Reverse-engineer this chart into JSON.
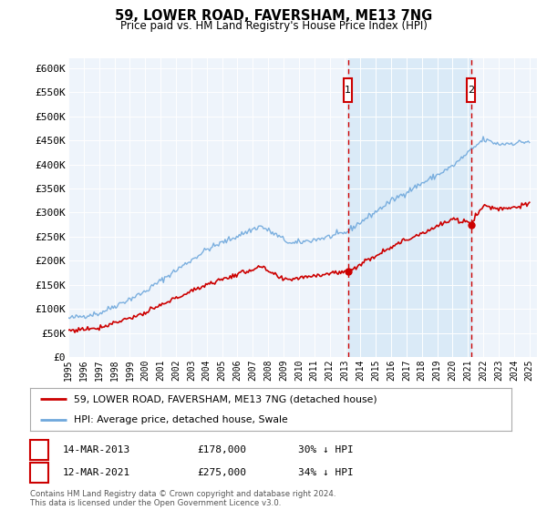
{
  "title": "59, LOWER ROAD, FAVERSHAM, ME13 7NG",
  "subtitle": "Price paid vs. HM Land Registry's House Price Index (HPI)",
  "ylabel_ticks": [
    "£0",
    "£50K",
    "£100K",
    "£150K",
    "£200K",
    "£250K",
    "£300K",
    "£350K",
    "£400K",
    "£450K",
    "£500K",
    "£550K",
    "£600K"
  ],
  "ytick_values": [
    0,
    50000,
    100000,
    150000,
    200000,
    250000,
    300000,
    350000,
    400000,
    450000,
    500000,
    550000,
    600000
  ],
  "ylim": [
    0,
    620000
  ],
  "xlim_start": 1995.0,
  "xlim_end": 2025.5,
  "hpi_color": "#6fa8dc",
  "price_color": "#cc0000",
  "shade_color": "#daeaf7",
  "marker1_date": 2013.19,
  "marker1_value": 178000,
  "marker2_date": 2021.19,
  "marker2_value": 275000,
  "legend_entry1": "59, LOWER ROAD, FAVERSHAM, ME13 7NG (detached house)",
  "legend_entry2": "HPI: Average price, detached house, Swale",
  "table_row1_num": "1",
  "table_row1_date": "14-MAR-2013",
  "table_row1_price": "£178,000",
  "table_row1_hpi": "30% ↓ HPI",
  "table_row2_num": "2",
  "table_row2_date": "12-MAR-2021",
  "table_row2_price": "£275,000",
  "table_row2_hpi": "34% ↓ HPI",
  "footer": "Contains HM Land Registry data © Crown copyright and database right 2024.\nThis data is licensed under the Open Government Licence v3.0.",
  "plot_bg_color": "#eef4fb",
  "xtick_years": [
    1995,
    1996,
    1997,
    1998,
    1999,
    2000,
    2001,
    2002,
    2003,
    2004,
    2005,
    2006,
    2007,
    2008,
    2009,
    2010,
    2011,
    2012,
    2013,
    2014,
    2015,
    2016,
    2017,
    2018,
    2019,
    2020,
    2021,
    2022,
    2023,
    2024,
    2025
  ]
}
